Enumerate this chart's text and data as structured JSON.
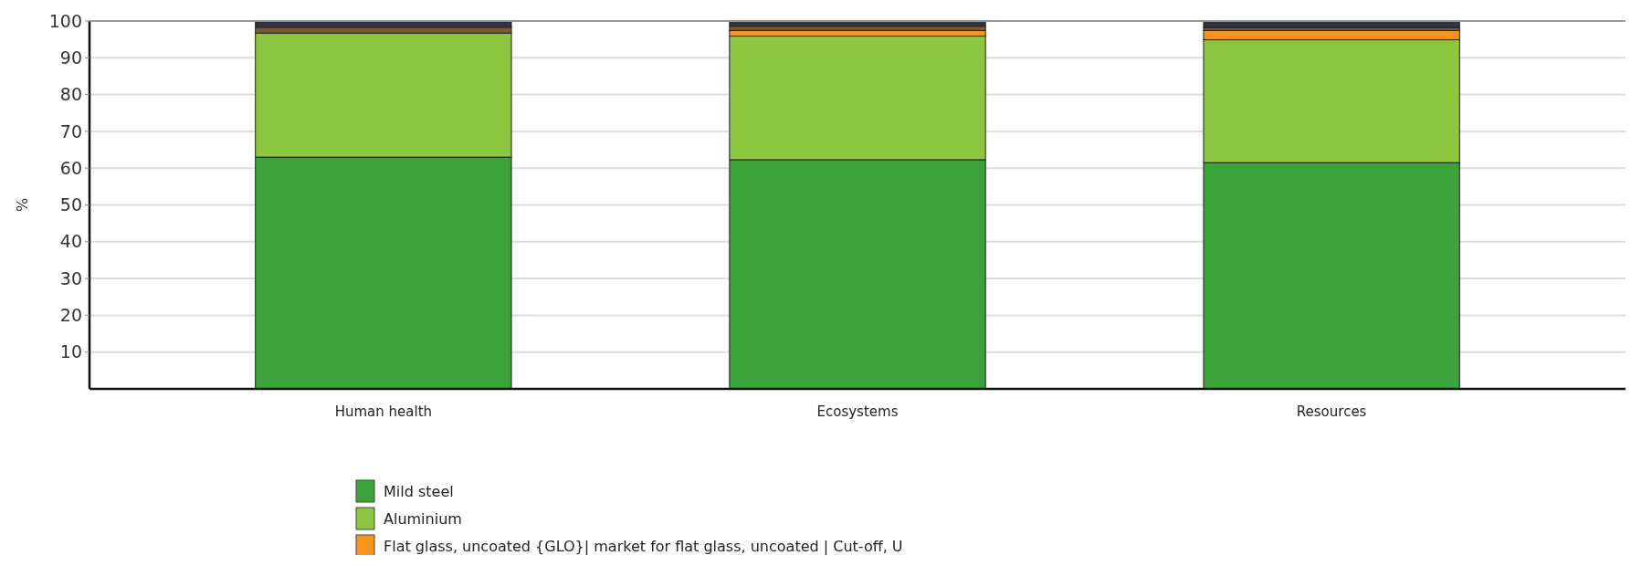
{
  "chart_data": {
    "type": "bar",
    "stacked": true,
    "ylabel": "%",
    "categories": [
      "Human health",
      "Ecosystems",
      "Resources"
    ],
    "series": [
      {
        "name": "Mild steel",
        "color": "#3aa43a",
        "values": [
          63,
          62.3,
          61.5
        ]
      },
      {
        "name": "Aluminium",
        "color": "#8dc63f",
        "values": [
          33.7,
          33.6,
          33.4
        ]
      },
      {
        "name": "Flat glass, uncoated {GLO}| market for flat glass, uncoated | Cut-off, U",
        "color": "#f7941d",
        "values": [
          null,
          1.5,
          2.5
        ]
      },
      {
        "color": "#7a5a30",
        "values": [
          1.6,
          1.2,
          0.8
        ]
      },
      {
        "color": "#2e3440",
        "values": [
          1.5,
          1.4,
          1.8
        ]
      }
    ],
    "ylim": [
      0,
      100
    ],
    "yticks": [
      10,
      20,
      30,
      40,
      50,
      60,
      70,
      80,
      90,
      100
    ],
    "grid": "y",
    "legend": "bottom"
  }
}
